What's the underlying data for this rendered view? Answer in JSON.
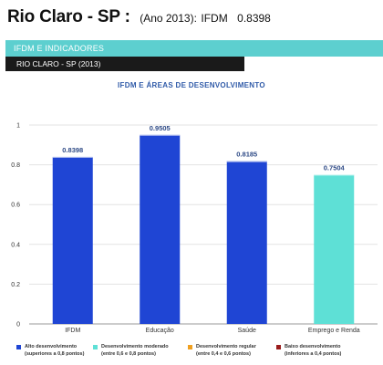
{
  "header": {
    "city": "Rio Claro - SP :",
    "year_label": "(Ano 2013):",
    "ifdm_label": "IFDM",
    "ifdm_value": "0.8398"
  },
  "banner": {
    "label": "IFDM E INDICADORES"
  },
  "subbar": {
    "label": "RIO CLARO - SP (2013)"
  },
  "chart_title": "IFDM E ÁREAS DE DESENVOLVIMENTO",
  "chart_data": {
    "type": "bar",
    "title": "IFDM E ÁREAS DE DESENVOLVIMENTO",
    "categories": [
      "IFDM",
      "Educação",
      "Saúde",
      "Emprego e Renda"
    ],
    "values": [
      0.8398,
      0.9505,
      0.8185,
      0.7504
    ],
    "value_labels": [
      "0.8398",
      "0.9505",
      "0.8185",
      "0.7504"
    ],
    "bar_colors": [
      "#1f45d4",
      "#1f45d4",
      "#1f45d4",
      "#5ee0d6"
    ],
    "ylim": [
      0,
      1
    ],
    "yticks": [
      0,
      0.2,
      0.4,
      0.6,
      0.8,
      1
    ],
    "ytick_labels": [
      "0",
      "0.2",
      "0.4",
      "0.6",
      "0.8",
      "1"
    ],
    "grid": true,
    "xlabel": "",
    "ylabel": ""
  },
  "legend": [
    {
      "color": "#1f45d4",
      "line1": "Alto desenvolvimento",
      "line2": "(superiores a 0,8 pontos)"
    },
    {
      "color": "#5ee0d6",
      "line1": "Desenvolvimento moderado",
      "line2": "(entre 0,6 e 0,8 pontos)"
    },
    {
      "color": "#f0a020",
      "line1": "Desenvolvimento regular",
      "line2": "(entre 0,4 e 0,6 pontos)"
    },
    {
      "color": "#9a1c1c",
      "line1": "Baixo desenvolvimento",
      "line2": "(inferiores a 0,4 pontos)"
    }
  ]
}
